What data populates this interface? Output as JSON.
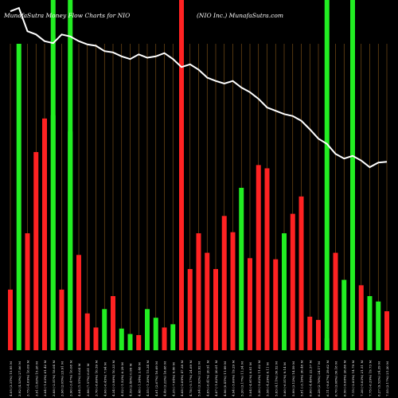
{
  "chart_data": {
    "type": "bar",
    "title_left": "MunafaSutra  Money Flow  Charts for NIO",
    "title_right": "(NIO Inc.) MunafaSutra.com",
    "xlabel": "",
    "ylabel": "",
    "grid": "vertical",
    "categories": [
      "Wed 23 Apr",
      "Tue 22 Apr",
      "Mon 21 Apr",
      "Thu 17 Apr",
      "Wed 16 Apr",
      "Tue 15 Apr",
      "Mon 14 Apr",
      "Fri 11 Apr",
      "Thu 10 Apr",
      "Wed 09 Apr",
      "Tue 08 Apr",
      "Mon 07 Apr",
      "Fri 04 Apr",
      "Thu 03 Apr",
      "Wed 02 Apr",
      "Tue 01 Apr",
      "Mon 31 Mar",
      "Fri 28 Mar",
      "Thu 27 Mar",
      "Wed 26 Mar",
      "Tue 25 Mar",
      "Mon 24 Mar",
      "Fri 21 Mar",
      "Thu 20 Mar",
      "Wed 19 Mar",
      "Tue 18 Mar",
      "Mon 17 Mar",
      "Fri 14 Mar",
      "Thu 13 Mar",
      "Wed 12 Mar",
      "Tue 11 Mar",
      "Mon 10 Mar",
      "Fri 07 Mar",
      "Thu 06 Mar",
      "Wed 05 Mar",
      "Tue 04 Mar",
      "Mon 03 Mar",
      "Fri 28 Feb",
      "Thu 27 Feb",
      "Wed 26 Feb",
      "Tue 25 Feb",
      "Mon 24 Feb",
      "Fri 21 Feb",
      "Thu 20 Feb",
      "Wed 19 Feb"
    ],
    "tick_labels": [
      "4.05 (3.31%) 15.95 M",
      "3.92 (4.53%) 27.06 M",
      "3.75 (-4.09%) 16.09 M",
      "3.91 (1.82%) 15.28 M",
      "3.84 (-1.03%) 61.42 M",
      "3.88 (-2.51%) 18.04 M",
      "3.98 (2.05%) 23.91 M",
      "3.90 (-3.47%) 16.08 M",
      "4.04 (1.51%) 8.04 M",
      "3.98 (7.57%) 6.81 M",
      "3.70 (-8.86%) 10.59 M",
      "4.06 (-6.45%) 7.94 M",
      "4.34 (-3.98%) 10.33 M",
      "4.52 (-1.52%) 6.29 M",
      "4.59 (2.46%) 0.99 M",
      "4.48 (-1.54%) 3.48 M",
      "4.55 (-1.30%) 15.34 M",
      "4.61 (2.67%) 16.69 M",
      "4.49 (3.22%) 16.68 M",
      "4.35 (-7.04%) 9.80 M",
      "4.68 (-2.09%) 47.38 M",
      "4.78 (-5.17%) 24.69 M",
      "5.04 (3.92%) 22.92 M",
      "4.85 (-0.41%) 20.91 M",
      "4.87 (-1.82%) 20.01 M",
      "4.96 (0.41%) 11.99 M",
      "4.94 (-5.00%) 19.29 M",
      "5.20 (3.17%) 11.34 M",
      "5.04 (-4.91%) 8.81 M",
      "5.30 (-5.02%) 11.02 M",
      "5.58 (-4.29%) 8.11 M",
      "5.83 (4.11%) 30.52 M",
      "5.60 (-6.51%) 9.14 M",
      "5.99 (3.12%) 14.59 M",
      "5.81 (-3.16%) 30.48 M",
      "6.00 (-4.46%) 22.57 M",
      "6.28 (2.78%) 24.17 M",
      "6.11 (-8.87%) 39.62 M",
      "6.70 (3.08%) 30.18 M",
      "6.50 (-9.08%) 26.86 M",
      "7.15 (-2.85%) 14.79 M",
      "7.36 (-5.03%) 21.51 M",
      "7.75 (-6.29%) 19.73 M",
      "8.27 (9.52%) 24.39 M",
      "7.55 (2.17%) 21.20 M"
    ],
    "series": [
      {
        "values": [
          56,
          283,
          108,
          183,
          214,
          217,
          56,
          202,
          88,
          34,
          21,
          38,
          50,
          20,
          15,
          14,
          38,
          30,
          21,
          24,
          100,
          75,
          108,
          90,
          75,
          124,
          109,
          150,
          85,
          171,
          168,
          84,
          108,
          126,
          142,
          31,
          28,
          11,
          90,
          65,
          60,
          60,
          50,
          45,
          36
        ],
        "colors": [
          "red",
          "green",
          "red",
          "red",
          "red",
          "green",
          "red",
          "green",
          "red",
          "red",
          "red",
          "green",
          "red",
          "green",
          "green",
          "red",
          "green",
          "green",
          "red",
          "green",
          "red",
          "red",
          "red",
          "red",
          "red",
          "red",
          "red",
          "green",
          "red",
          "red",
          "red",
          "red",
          "green",
          "red",
          "red",
          "red",
          "red",
          "green",
          "red",
          "green",
          "green",
          "red",
          "green",
          "green",
          "red"
        ]
      }
    ],
    "price_line": [
      5.2,
      5.25,
      4.9,
      4.85,
      4.75,
      4.72,
      4.85,
      4.82,
      4.75,
      4.7,
      4.68,
      4.6,
      4.58,
      4.52,
      4.48,
      4.55,
      4.5,
      4.52,
      4.57,
      4.48,
      4.36,
      4.4,
      4.32,
      4.2,
      4.15,
      4.11,
      4.15,
      4.05,
      3.98,
      3.88,
      3.75,
      3.7,
      3.65,
      3.62,
      3.55,
      3.42,
      3.28,
      3.2,
      3.05,
      2.98,
      3.02,
      2.95,
      2.85,
      2.92,
      2.93
    ],
    "colors": {
      "up": "#ff2222",
      "down": "#22ee22",
      "grid": "#8b5a1a",
      "line": "#ffffff",
      "background": "#000000"
    }
  }
}
